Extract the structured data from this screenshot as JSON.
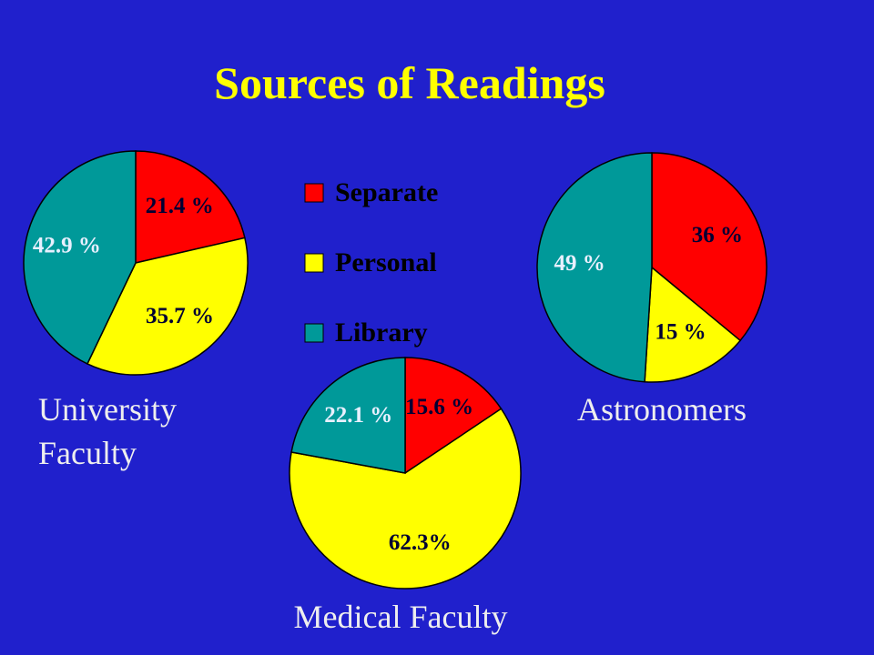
{
  "title": "Sources of Readings",
  "chart_data": [
    {
      "type": "pie",
      "title": "University Faculty",
      "categories": [
        "Separate",
        "Personal",
        "Library"
      ],
      "colors": [
        "#ff0000",
        "#ffff00",
        "#009999"
      ],
      "values": [
        21.4,
        35.7,
        42.9
      ],
      "value_labels": [
        "21.4 %",
        "35.7 %",
        "42.9 %"
      ]
    },
    {
      "type": "pie",
      "title": "Medical Faculty",
      "categories": [
        "Separate",
        "Personal",
        "Library"
      ],
      "colors": [
        "#ff0000",
        "#ffff00",
        "#009999"
      ],
      "values": [
        15.6,
        62.3,
        22.1
      ],
      "value_labels": [
        "15.6 %",
        "62.3%",
        "22.1 %"
      ]
    },
    {
      "type": "pie",
      "title": "Astronomers",
      "categories": [
        "Separate",
        "Personal",
        "Library"
      ],
      "colors": [
        "#ff0000",
        "#ffff00",
        "#009999"
      ],
      "values": [
        36,
        15,
        49
      ],
      "value_labels": [
        "36 %",
        "15 %",
        "49 %"
      ]
    }
  ]
}
